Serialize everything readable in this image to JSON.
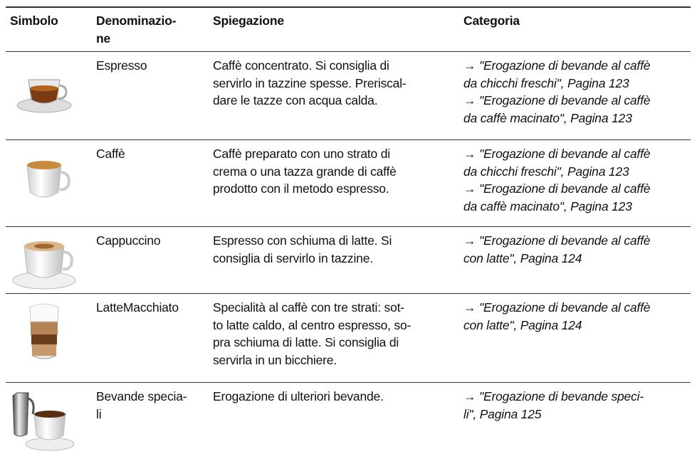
{
  "table": {
    "header": {
      "symbol": "Simbolo",
      "name": [
        "Denominazio-",
        "ne"
      ],
      "explanation": "Spiegazione",
      "category": "Categoria"
    },
    "rows": [
      {
        "name": [
          "Espresso"
        ],
        "explanation": [
          "Caffè concentrato. Si consiglia di",
          "servirlo in tazzine spesse. Preriscal-",
          "dare le tazze con acqua calda."
        ],
        "category": [
          "→ \"Erogazione di bevande al caffè",
          "da chicchi freschi\", Pagina 123",
          "→ \"Erogazione di bevande al caffè",
          "da caffè macinato\", Pagina 123"
        ]
      },
      {
        "name": [
          "Caffè"
        ],
        "explanation": [
          "Caffè preparato con uno strato di",
          "crema o una tazza grande di caffè",
          "prodotto con il metodo espresso."
        ],
        "category": [
          "→ \"Erogazione di bevande al caffè",
          "da chicchi freschi\", Pagina 123",
          "→ \"Erogazione di bevande al caffè",
          "da caffè macinato\", Pagina 123"
        ]
      },
      {
        "name": [
          "Cappuccino"
        ],
        "explanation": [
          "Espresso con schiuma di latte. Si",
          "consiglia di servirlo in tazzine."
        ],
        "category": [
          "→ \"Erogazione di bevande al caffè",
          "con latte\", Pagina 124"
        ]
      },
      {
        "name": [
          "LatteMacchiato"
        ],
        "explanation": [
          "Specialità al caffè con tre strati: sot-",
          "to latte caldo, al centro espresso, so-",
          "pra schiuma di latte. Si consiglia di",
          "servirla in un bicchiere."
        ],
        "category": [
          "→ \"Erogazione di bevande al caffè",
          "con latte\", Pagina 124"
        ]
      },
      {
        "name": [
          "Bevande specia-",
          "li"
        ],
        "explanation": [
          "Erogazione di ulteriori bevande."
        ],
        "category": [
          "→ \"Erogazione di bevande speci-",
          "li\", Pagina 125"
        ]
      }
    ]
  }
}
